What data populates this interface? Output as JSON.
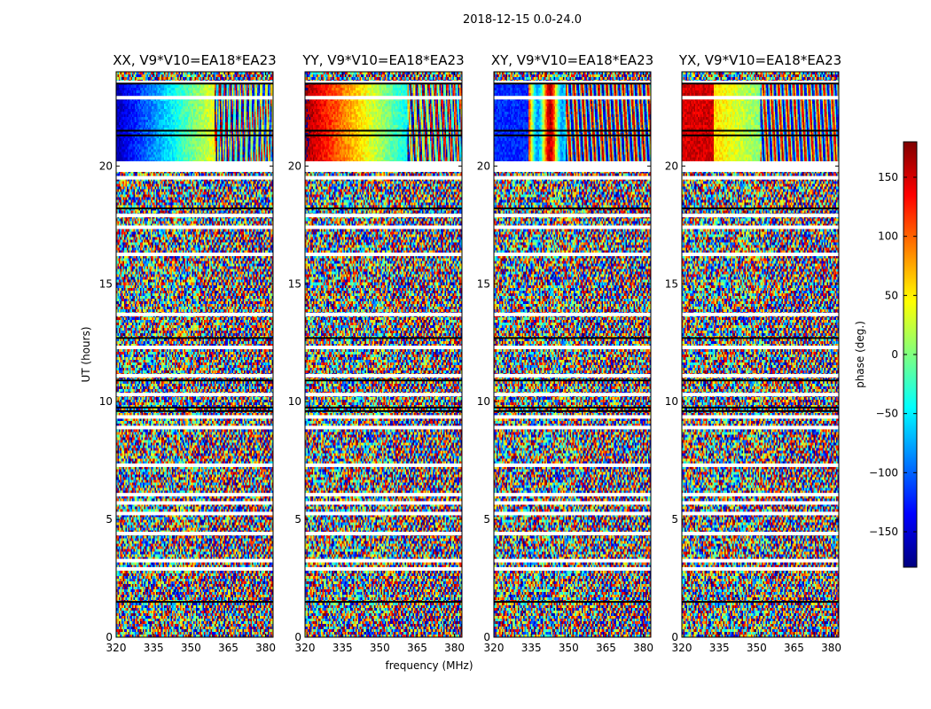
{
  "figure": {
    "suptitle": "2018-12-15 0.0-24.0",
    "xlabel": "frequency (MHz)",
    "ylabel": "UT (hours)"
  },
  "colorbar": {
    "label": "phase (deg.)",
    "ticks": [
      "150",
      "100",
      "50",
      "0",
      "−50",
      "−100",
      "−150"
    ],
    "tick_values": [
      150,
      100,
      50,
      0,
      -50,
      -100,
      -150
    ],
    "range": [
      -180,
      180
    ],
    "colormap": "jet",
    "colors": [
      "#00007f",
      "#0000ff",
      "#007fff",
      "#00ffff",
      "#7fff7f",
      "#ffff00",
      "#ff7f00",
      "#ff0000",
      "#7f0000"
    ]
  },
  "chart_data": [
    {
      "type": "heatmap",
      "title": "XX, V9*V10=EA18*EA23",
      "xlim": [
        320,
        383
      ],
      "ylim": [
        0,
        24
      ],
      "xticks": [
        320,
        335,
        350,
        365,
        380
      ],
      "xtick_labels": [
        "320",
        "335",
        "350",
        "365",
        "380"
      ],
      "yticks": [
        0,
        5,
        10,
        15,
        20
      ],
      "ytick_labels": [
        "0",
        "5",
        "10",
        "15",
        "20"
      ],
      "value": "phase (deg.)",
      "pattern": "coherent phase gradient 20.2-23.5 UT (blue to red with frequency), noise elsewhere"
    },
    {
      "type": "heatmap",
      "title": "YY, V9*V10=EA18*EA23",
      "xlim": [
        320,
        383
      ],
      "ylim": [
        0,
        24
      ],
      "xticks": [
        320,
        335,
        350,
        365,
        380
      ],
      "xtick_labels": [
        "320",
        "335",
        "350",
        "365",
        "380"
      ],
      "yticks": [
        0,
        5,
        10,
        15,
        20
      ],
      "ytick_labels": [
        "0",
        "5",
        "10",
        "15",
        "20"
      ],
      "value": "phase (deg.)",
      "pattern": "coherent phase gradient 20.2-23.5 UT (red to cyan with frequency), noise elsewhere"
    },
    {
      "type": "heatmap",
      "title": "XY, V9*V10=EA18*EA23",
      "xlim": [
        320,
        383
      ],
      "ylim": [
        0,
        24
      ],
      "xticks": [
        320,
        335,
        350,
        365,
        380
      ],
      "xtick_labels": [
        "320",
        "335",
        "350",
        "365",
        "380"
      ],
      "yticks": [
        0,
        5,
        10,
        15,
        20
      ],
      "ytick_labels": [
        "0",
        "5",
        "10",
        "15",
        "20"
      ],
      "value": "phase (deg.)",
      "pattern": "coherent blue/red banding 20.2-23.5 UT, noise elsewhere"
    },
    {
      "type": "heatmap",
      "title": "YX, V9*V10=EA18*EA23",
      "xlim": [
        320,
        383
      ],
      "ylim": [
        0,
        24
      ],
      "xticks": [
        320,
        335,
        350,
        365,
        380
      ],
      "xtick_labels": [
        "320",
        "335",
        "350",
        "365",
        "380"
      ],
      "yticks": [
        0,
        5,
        10,
        15,
        20
      ],
      "ytick_labels": [
        "0",
        "5",
        "10",
        "15",
        "20"
      ],
      "value": "phase (deg.)",
      "pattern": "coherent red/yellow/green banding 20.2-23.5 UT, noise elsewhere"
    }
  ]
}
